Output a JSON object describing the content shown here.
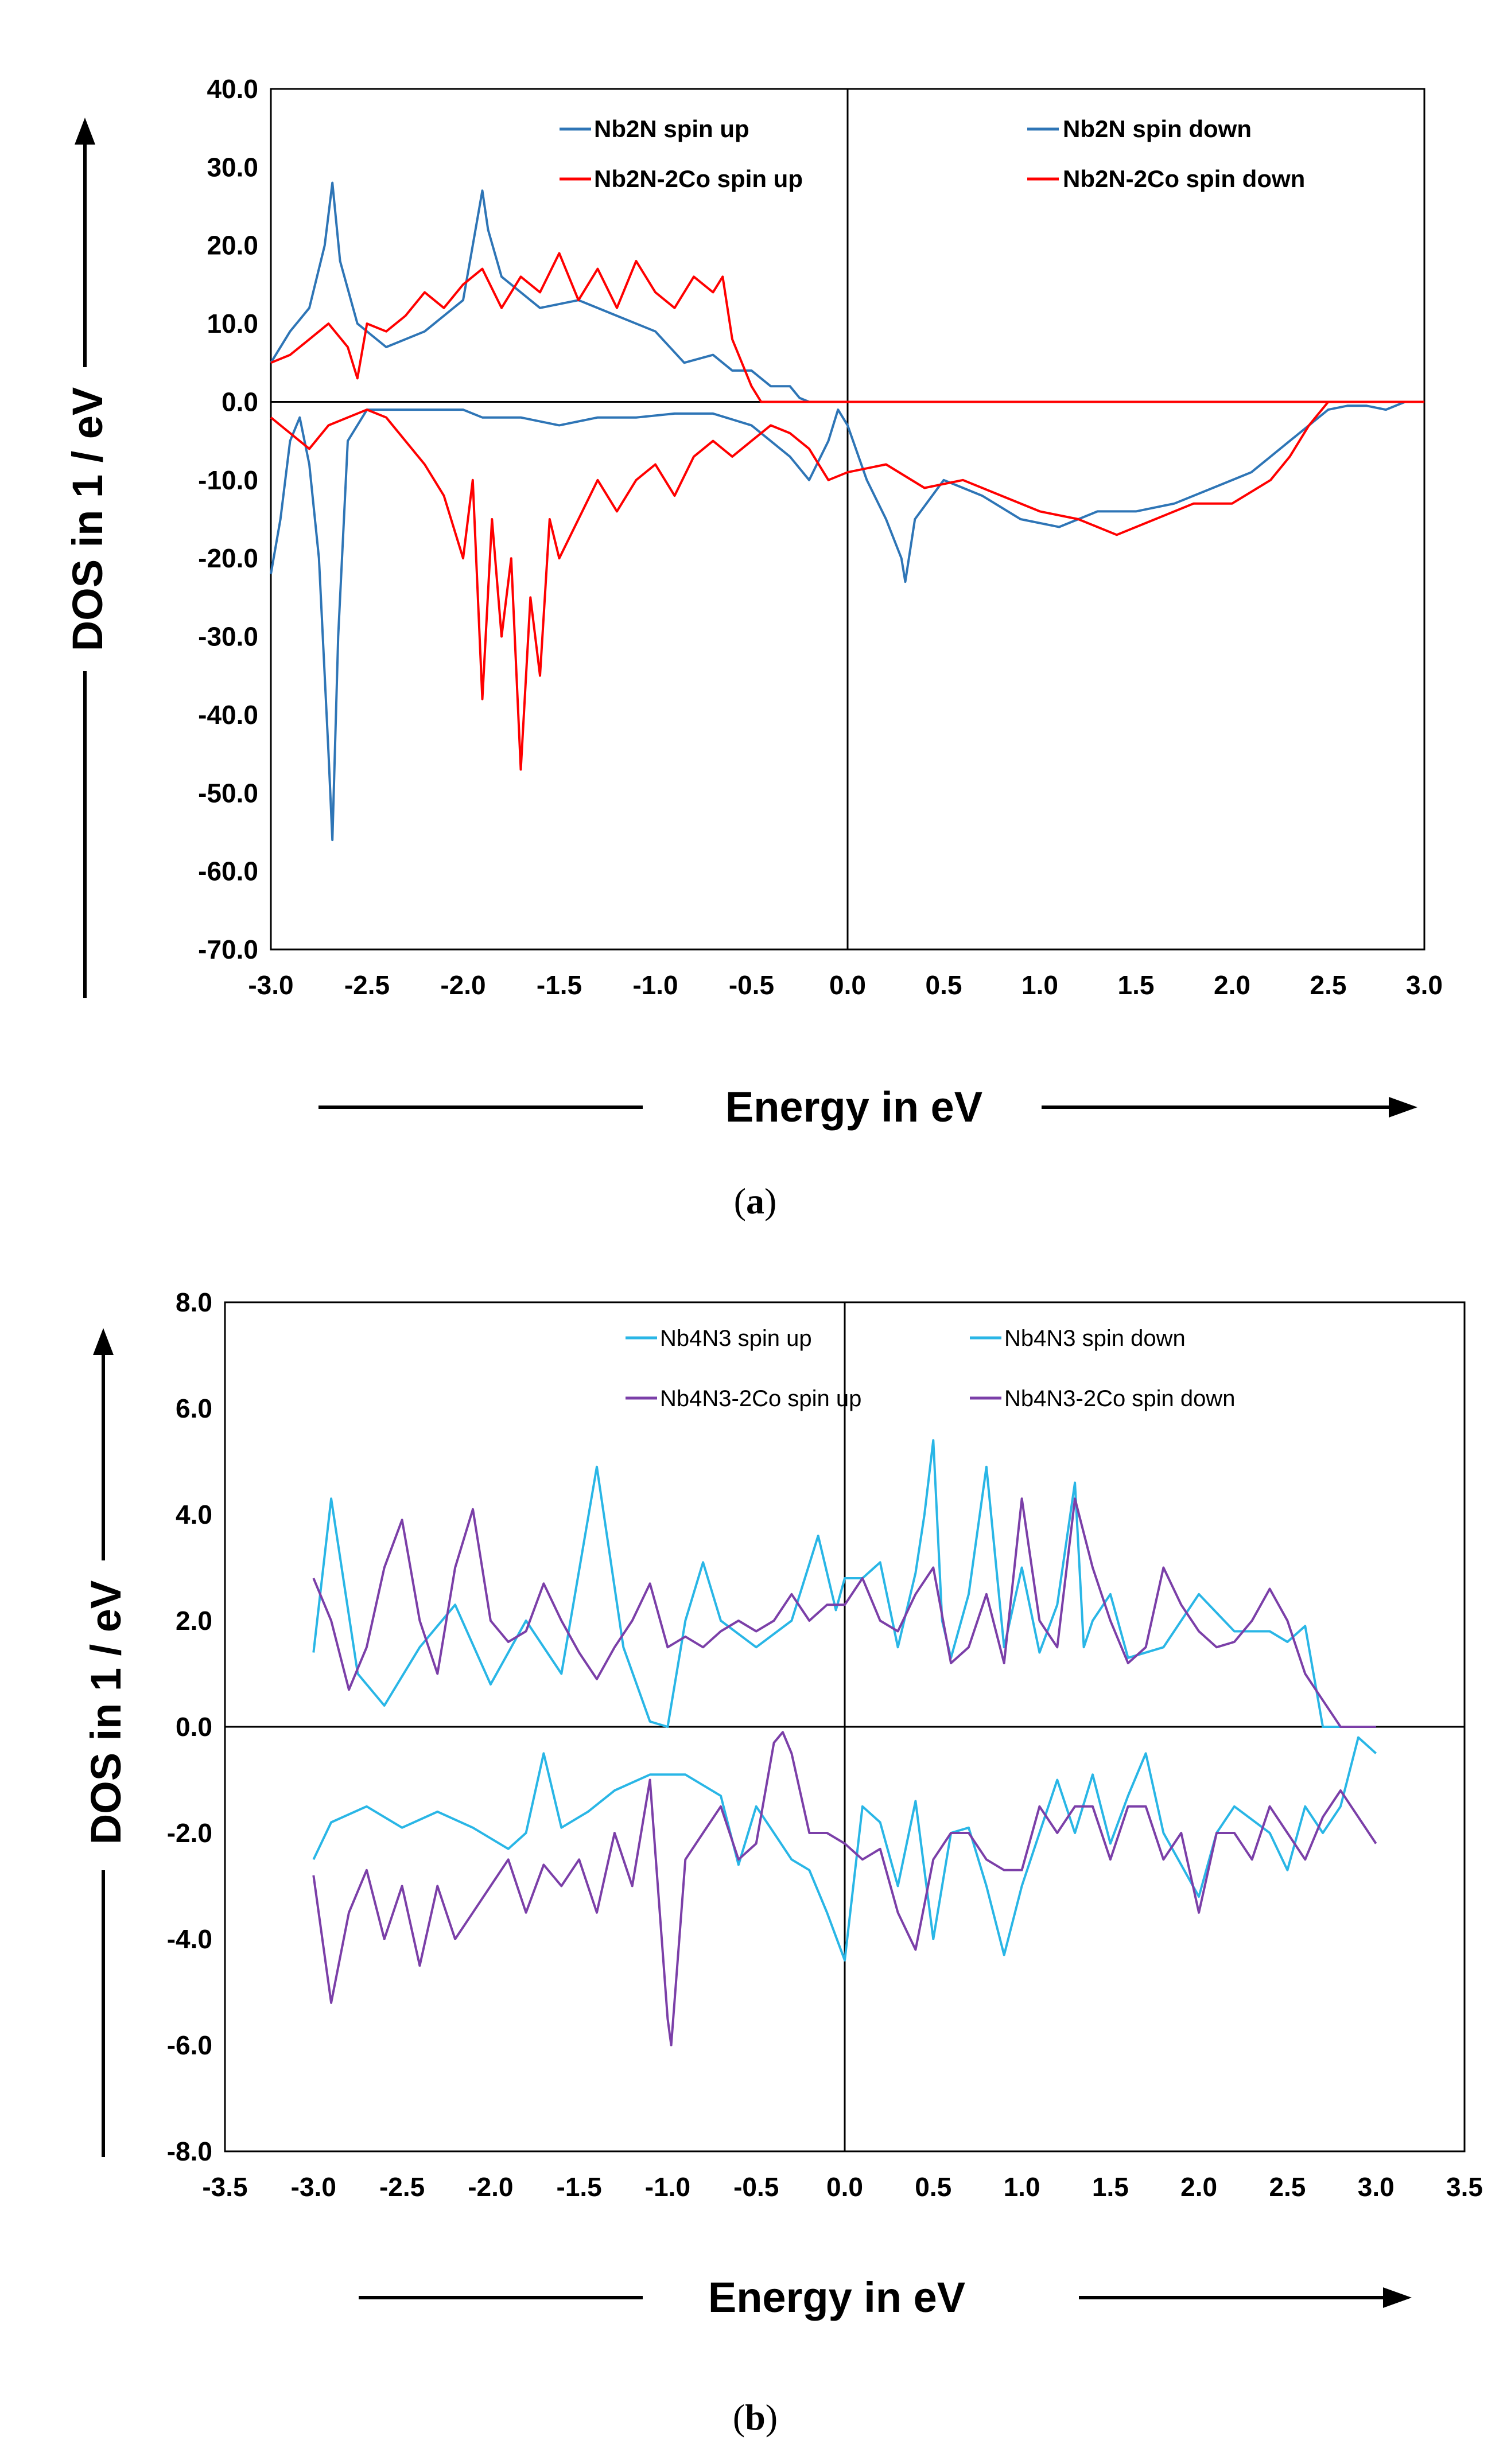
{
  "chart_data": [
    {
      "type": "line",
      "panel_label": "a",
      "xlabel": "Energy in eV",
      "ylabel": "DOS in 1 / eV",
      "xlim": [
        -3.0,
        3.0
      ],
      "ylim": [
        -70.0,
        40.0
      ],
      "x_ticks": [
        "-3.0",
        "-2.5",
        "-2.0",
        "-1.5",
        "-1.0",
        "-0.5",
        "0.0",
        "0.5",
        "1.0",
        "1.5",
        "2.0",
        "2.5",
        "3.0"
      ],
      "y_ticks": [
        "40.0",
        "30.0",
        "20.0",
        "10.0",
        "0.0",
        "-10.0",
        "-20.0",
        "-30.0",
        "-40.0",
        "-50.0",
        "-60.0",
        "-70.0"
      ],
      "series": [
        {
          "name": "Nb2N spin up",
          "color": "#2E75B6",
          "x": [
            -3.0,
            -2.9,
            -2.8,
            -2.72,
            -2.68,
            -2.64,
            -2.55,
            -2.4,
            -2.2,
            -2.0,
            -1.95,
            -1.9,
            -1.87,
            -1.8,
            -1.6,
            -1.4,
            -1.2,
            -1.0,
            -0.85,
            -0.7,
            -0.6,
            -0.5,
            -0.4,
            -0.3,
            -0.25,
            -0.2,
            0.0,
            3.0
          ],
          "y": [
            5,
            9,
            12,
            20,
            28,
            18,
            10,
            7,
            9,
            13,
            20,
            27,
            22,
            16,
            12,
            13,
            11,
            9,
            5,
            6,
            4,
            4,
            2,
            2,
            0.5,
            0,
            0,
            0
          ]
        },
        {
          "name": "Nb2N spin down",
          "color": "#2E75B6",
          "x": [
            -3.0,
            -2.95,
            -2.9,
            -2.85,
            -2.8,
            -2.75,
            -2.7,
            -2.68,
            -2.65,
            -2.6,
            -2.5,
            -2.4,
            -2.2,
            -2.0,
            -1.9,
            -1.7,
            -1.5,
            -1.3,
            -1.1,
            -0.9,
            -0.7,
            -0.5,
            -0.3,
            -0.2,
            -0.1,
            -0.05,
            0.0,
            0.1,
            0.2,
            0.28,
            0.3,
            0.35,
            0.5,
            0.7,
            0.9,
            1.1,
            1.3,
            1.5,
            1.7,
            1.9,
            2.1,
            2.2,
            2.3,
            2.4,
            2.5,
            2.6,
            2.7,
            2.8,
            2.9
          ],
          "y": [
            -22,
            -15,
            -5,
            -2,
            -8,
            -20,
            -45,
            -56,
            -30,
            -5,
            -1,
            -1,
            -1,
            -1,
            -2,
            -2,
            -3,
            -2,
            -2,
            -1.5,
            -1.5,
            -3,
            -7,
            -10,
            -5,
            -1,
            -3,
            -10,
            -15,
            -20,
            -23,
            -15,
            -10,
            -12,
            -15,
            -16,
            -14,
            -14,
            -13,
            -11,
            -9,
            -7,
            -5,
            -3,
            -1,
            -0.5,
            -0.5,
            -1,
            0
          ]
        },
        {
          "name": "Nb2N-2Co spin up",
          "color": "#FF0000",
          "x": [
            -3.0,
            -2.9,
            -2.8,
            -2.7,
            -2.6,
            -2.55,
            -2.5,
            -2.4,
            -2.3,
            -2.2,
            -2.1,
            -2.0,
            -1.9,
            -1.8,
            -1.7,
            -1.6,
            -1.5,
            -1.4,
            -1.3,
            -1.2,
            -1.1,
            -1.0,
            -0.9,
            -0.8,
            -0.7,
            -0.65,
            -0.6,
            -0.5,
            -0.45,
            -0.4,
            3.0
          ],
          "y": [
            5,
            6,
            8,
            10,
            7,
            3,
            10,
            9,
            11,
            14,
            12,
            15,
            17,
            12,
            16,
            14,
            19,
            13,
            17,
            12,
            18,
            14,
            12,
            16,
            14,
            16,
            8,
            2,
            0,
            0,
            0
          ]
        },
        {
          "name": "Nb2N-2Co spin down",
          "color": "#FF0000",
          "x": [
            -3.0,
            -2.9,
            -2.8,
            -2.7,
            -2.6,
            -2.5,
            -2.4,
            -2.3,
            -2.2,
            -2.1,
            -2.0,
            -1.95,
            -1.9,
            -1.85,
            -1.8,
            -1.75,
            -1.7,
            -1.65,
            -1.6,
            -1.55,
            -1.5,
            -1.4,
            -1.3,
            -1.2,
            -1.1,
            -1.0,
            -0.9,
            -0.8,
            -0.7,
            -0.6,
            -0.5,
            -0.4,
            -0.3,
            -0.2,
            -0.1,
            0.0,
            0.2,
            0.4,
            0.6,
            0.8,
            1.0,
            1.2,
            1.4,
            1.6,
            1.8,
            2.0,
            2.2,
            2.3,
            2.4,
            2.5,
            3.0
          ],
          "y": [
            -2,
            -4,
            -6,
            -3,
            -2,
            -1,
            -2,
            -5,
            -8,
            -12,
            -20,
            -10,
            -38,
            -15,
            -30,
            -20,
            -47,
            -25,
            -35,
            -15,
            -20,
            -15,
            -10,
            -14,
            -10,
            -8,
            -12,
            -7,
            -5,
            -7,
            -5,
            -3,
            -4,
            -6,
            -10,
            -9,
            -8,
            -11,
            -10,
            -12,
            -14,
            -15,
            -17,
            -15,
            -13,
            -13,
            -10,
            -7,
            -3,
            0,
            0
          ]
        }
      ]
    },
    {
      "type": "line",
      "panel_label": "b",
      "xlabel": "Energy in eV",
      "ylabel": "DOS in 1 / eV",
      "xlim": [
        -3.5,
        3.5
      ],
      "ylim": [
        -8.0,
        8.0
      ],
      "x_ticks": [
        "-3.5",
        "-3.0",
        "-2.5",
        "-2.0",
        "-1.5",
        "-1.0",
        "-0.5",
        "0.0",
        "0.5",
        "1.0",
        "1.5",
        "2.0",
        "2.5",
        "3.0",
        "3.5"
      ],
      "y_ticks": [
        "8.0",
        "6.0",
        "4.0",
        "2.0",
        "0.0",
        "-2.0",
        "-4.0",
        "-6.0",
        "-8.0"
      ],
      "series": [
        {
          "name": "Nb4N3 spin up",
          "color": "#29B6E6",
          "x": [
            -3.0,
            -2.9,
            -2.75,
            -2.6,
            -2.4,
            -2.2,
            -2.0,
            -1.8,
            -1.6,
            -1.4,
            -1.25,
            -1.1,
            -1.0,
            -0.9,
            -0.8,
            -0.7,
            -0.5,
            -0.3,
            -0.15,
            -0.05,
            0.0,
            0.1,
            0.2,
            0.3,
            0.4,
            0.45,
            0.5,
            0.55,
            0.6,
            0.7,
            0.8,
            0.9,
            1.0,
            1.1,
            1.2,
            1.3,
            1.35,
            1.4,
            1.5,
            1.6,
            1.8,
            2.0,
            2.2,
            2.4,
            2.5,
            2.6,
            2.7,
            2.8,
            3.0
          ],
          "y": [
            1.4,
            4.3,
            1.0,
            0.4,
            1.5,
            2.3,
            0.8,
            2.0,
            1.0,
            4.9,
            1.5,
            0.1,
            0.0,
            2.0,
            3.1,
            2.0,
            1.5,
            2.0,
            3.6,
            2.2,
            2.8,
            2.8,
            3.1,
            1.5,
            2.9,
            4.0,
            5.4,
            2.0,
            1.3,
            2.5,
            4.9,
            1.5,
            3.0,
            1.4,
            2.3,
            4.6,
            1.5,
            2.0,
            2.5,
            1.3,
            1.5,
            2.5,
            1.8,
            1.8,
            1.6,
            1.9,
            0.0,
            0.0,
            0.0
          ]
        },
        {
          "name": "Nb4N3 spin down",
          "color": "#29B6E6",
          "x": [
            -3.0,
            -2.9,
            -2.7,
            -2.5,
            -2.3,
            -2.1,
            -1.9,
            -1.8,
            -1.7,
            -1.6,
            -1.45,
            -1.3,
            -1.1,
            -0.9,
            -0.7,
            -0.6,
            -0.5,
            -0.4,
            -0.3,
            -0.2,
            -0.1,
            0.0,
            0.1,
            0.2,
            0.3,
            0.4,
            0.5,
            0.6,
            0.7,
            0.8,
            0.9,
            1.0,
            1.1,
            1.2,
            1.3,
            1.4,
            1.5,
            1.6,
            1.7,
            1.8,
            2.0,
            2.1,
            2.2,
            2.4,
            2.5,
            2.6,
            2.7,
            2.8,
            2.9,
            3.0
          ],
          "y": [
            -2.5,
            -1.8,
            -1.5,
            -1.9,
            -1.6,
            -1.9,
            -2.3,
            -2.0,
            -0.5,
            -1.9,
            -1.6,
            -1.2,
            -0.9,
            -0.9,
            -1.3,
            -2.6,
            -1.5,
            -2.0,
            -2.5,
            -2.7,
            -3.5,
            -4.4,
            -1.5,
            -1.8,
            -3.0,
            -1.4,
            -4.0,
            -2.0,
            -1.9,
            -3.0,
            -4.3,
            -3.0,
            -2.0,
            -1.0,
            -2.0,
            -0.9,
            -2.2,
            -1.3,
            -0.5,
            -2.0,
            -3.2,
            -2.0,
            -1.5,
            -2.0,
            -2.7,
            -1.5,
            -2.0,
            -1.5,
            -0.2,
            -0.5
          ]
        },
        {
          "name": "Nb4N3-2Co spin up",
          "color": "#7B3FA8",
          "x": [
            -3.0,
            -2.9,
            -2.8,
            -2.7,
            -2.6,
            -2.5,
            -2.4,
            -2.3,
            -2.2,
            -2.1,
            -2.0,
            -1.9,
            -1.8,
            -1.7,
            -1.6,
            -1.5,
            -1.4,
            -1.3,
            -1.2,
            -1.1,
            -1.0,
            -0.9,
            -0.8,
            -0.7,
            -0.6,
            -0.5,
            -0.4,
            -0.3,
            -0.2,
            -0.1,
            0.0,
            0.1,
            0.2,
            0.3,
            0.4,
            0.5,
            0.6,
            0.7,
            0.8,
            0.9,
            1.0,
            1.1,
            1.2,
            1.3,
            1.4,
            1.5,
            1.6,
            1.7,
            1.8,
            1.9,
            2.0,
            2.1,
            2.2,
            2.3,
            2.4,
            2.5,
            2.6,
            2.7,
            2.8,
            3.0
          ],
          "y": [
            2.8,
            2.0,
            0.7,
            1.5,
            3.0,
            3.9,
            2.0,
            1.0,
            3.0,
            4.1,
            2.0,
            1.6,
            1.8,
            2.7,
            2.0,
            1.4,
            0.9,
            1.5,
            2.0,
            2.7,
            1.5,
            1.7,
            1.5,
            1.8,
            2.0,
            1.8,
            2.0,
            2.5,
            2.0,
            2.3,
            2.3,
            2.8,
            2.0,
            1.8,
            2.5,
            3.0,
            1.2,
            1.5,
            2.5,
            1.2,
            4.3,
            2.0,
            1.5,
            4.3,
            3.0,
            2.0,
            1.2,
            1.5,
            3.0,
            2.3,
            1.8,
            1.5,
            1.6,
            2.0,
            2.6,
            2.0,
            1.0,
            0.5,
            0.0,
            0.0
          ]
        },
        {
          "name": "Nb4N3-2Co spin down",
          "color": "#7B3FA8",
          "x": [
            -3.0,
            -2.9,
            -2.8,
            -2.7,
            -2.6,
            -2.5,
            -2.4,
            -2.3,
            -2.2,
            -2.1,
            -2.0,
            -1.9,
            -1.8,
            -1.7,
            -1.6,
            -1.5,
            -1.4,
            -1.3,
            -1.2,
            -1.1,
            -1.0,
            -0.98,
            -0.9,
            -0.8,
            -0.7,
            -0.6,
            -0.5,
            -0.4,
            -0.35,
            -0.3,
            -0.2,
            -0.1,
            0.0,
            0.1,
            0.2,
            0.3,
            0.4,
            0.5,
            0.6,
            0.7,
            0.8,
            0.9,
            1.0,
            1.1,
            1.2,
            1.3,
            1.4,
            1.5,
            1.6,
            1.7,
            1.8,
            1.9,
            2.0,
            2.1,
            2.2,
            2.3,
            2.4,
            2.5,
            2.6,
            2.7,
            2.8,
            2.9,
            3.0
          ],
          "y": [
            -2.8,
            -5.2,
            -3.5,
            -2.7,
            -4.0,
            -3.0,
            -4.5,
            -3.0,
            -4.0,
            -3.5,
            -3.0,
            -2.5,
            -3.5,
            -2.6,
            -3.0,
            -2.5,
            -3.5,
            -2.0,
            -3.0,
            -1.0,
            -5.5,
            -6.0,
            -2.5,
            -2.0,
            -1.5,
            -2.5,
            -2.2,
            -0.3,
            -0.1,
            -0.5,
            -2.0,
            -2.0,
            -2.2,
            -2.5,
            -2.3,
            -3.5,
            -4.2,
            -2.5,
            -2.0,
            -2.0,
            -2.5,
            -2.7,
            -2.7,
            -1.5,
            -2.0,
            -1.5,
            -1.5,
            -2.5,
            -1.5,
            -1.5,
            -2.5,
            -2.0,
            -3.5,
            -2.0,
            -2.0,
            -2.5,
            -1.5,
            -2.0,
            -2.5,
            -1.7,
            -1.2,
            -1.7,
            -2.2
          ]
        }
      ]
    }
  ]
}
